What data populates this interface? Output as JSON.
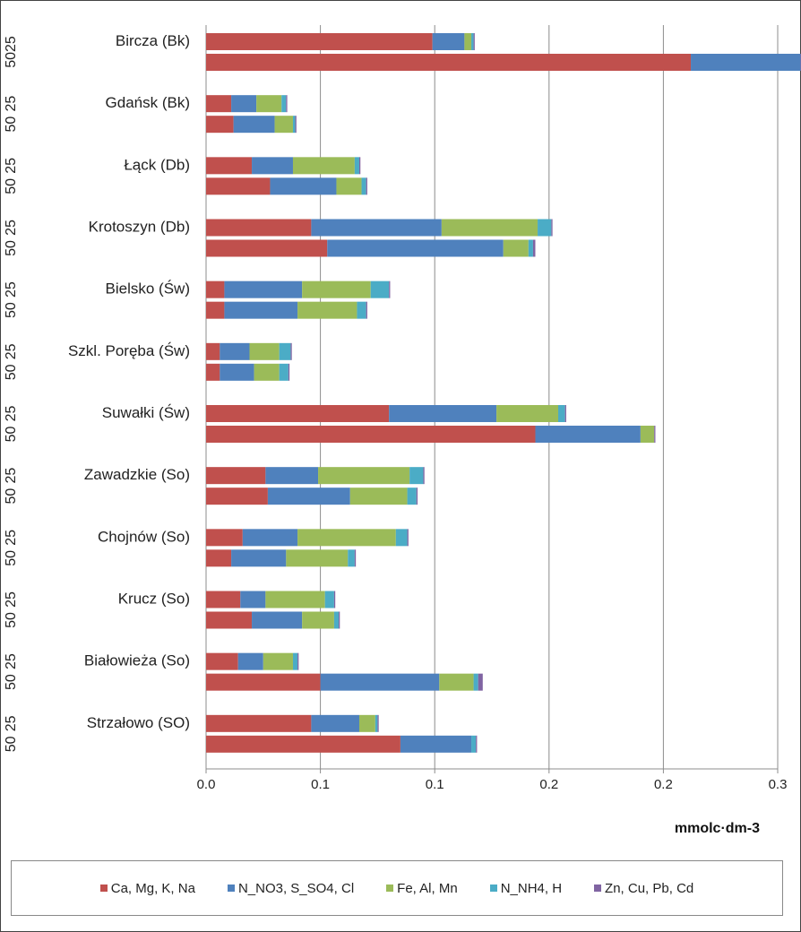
{
  "chart_data": {
    "type": "bar",
    "orientation": "horizontal",
    "stacked": true,
    "categories": [
      "Bircza (Bk)",
      "Gdańsk (Bk)",
      "Łąck (Db)",
      "Krotoszyn (Db)",
      "Bielsko (Św)",
      "Szkl. Poręba (Św)",
      "Suwałki (Św)",
      "Zawadzkie (So)",
      "Chojnów (So)",
      "Krucz (So)",
      "Białowieża (So)",
      "Strzałowo (SO)"
    ],
    "depth_labels": [
      "50",
      "25",
      "50",
      "25",
      "50",
      "25",
      "50",
      "25",
      "50",
      "25",
      "50",
      "25",
      "50",
      "25",
      "50",
      "25",
      "50",
      "25",
      "50",
      "25",
      "50",
      "25",
      "50",
      "25"
    ],
    "depth_label_first": "5025",
    "series": [
      {
        "name": "Ca, Mg, K, Na",
        "color": "#c0504d",
        "values": [
          [
            0.099,
            0.212
          ],
          [
            0.011,
            0.012
          ],
          [
            0.02,
            0.028
          ],
          [
            0.046,
            0.053
          ],
          [
            0.008,
            0.008
          ],
          [
            0.006,
            0.006
          ],
          [
            0.08,
            0.144
          ],
          [
            0.026,
            0.027
          ],
          [
            0.016,
            0.011
          ],
          [
            0.015,
            0.02
          ],
          [
            0.014,
            0.05
          ],
          [
            0.046,
            0.085
          ]
        ]
      },
      {
        "name": "N_NO3, S_SO4, Cl",
        "color": "#4f81bd",
        "values": [
          [
            0.014,
            0.048
          ],
          [
            0.011,
            0.018
          ],
          [
            0.018,
            0.029
          ],
          [
            0.057,
            0.077
          ],
          [
            0.034,
            0.032
          ],
          [
            0.013,
            0.015
          ],
          [
            0.047,
            0.046
          ],
          [
            0.023,
            0.036
          ],
          [
            0.024,
            0.024
          ],
          [
            0.011,
            0.022
          ],
          [
            0.011,
            0.052
          ],
          [
            0.021,
            0.031
          ]
        ]
      },
      {
        "name": "Fe, Al, Mn",
        "color": "#9bbb59",
        "values": [
          [
            0.003,
            0.0
          ],
          [
            0.011,
            0.008
          ],
          [
            0.027,
            0.011
          ],
          [
            0.042,
            0.011
          ],
          [
            0.03,
            0.026
          ],
          [
            0.013,
            0.011
          ],
          [
            0.027,
            0.006
          ],
          [
            0.04,
            0.025
          ],
          [
            0.043,
            0.027
          ],
          [
            0.026,
            0.014
          ],
          [
            0.013,
            0.015
          ],
          [
            0.007,
            0.0
          ]
        ]
      },
      {
        "name": "N_NH4, H",
        "color": "#4bacc6",
        "values": [
          [
            0.001,
            0.0
          ],
          [
            0.002,
            0.001
          ],
          [
            0.002,
            0.002
          ],
          [
            0.006,
            0.002
          ],
          [
            0.008,
            0.004
          ],
          [
            0.005,
            0.004
          ],
          [
            0.003,
            0.0
          ],
          [
            0.006,
            0.004
          ],
          [
            0.005,
            0.003
          ],
          [
            0.004,
            0.002
          ],
          [
            0.002,
            0.002
          ],
          [
            0.001,
            0.002
          ]
        ]
      },
      {
        "name": "Zn, Cu, Pb, Cd",
        "color": "#8064a2",
        "values": [
          [
            0.0005,
            0.001
          ],
          [
            0.0005,
            0.0005
          ],
          [
            0.0005,
            0.0005
          ],
          [
            0.0005,
            0.001
          ],
          [
            0.0005,
            0.0005
          ],
          [
            0.0005,
            0.0005
          ],
          [
            0.0005,
            0.0005
          ],
          [
            0.0005,
            0.0005
          ],
          [
            0.0005,
            0.0005
          ],
          [
            0.0005,
            0.0005
          ],
          [
            0.0005,
            0.002
          ],
          [
            0.0005,
            0.0005
          ]
        ]
      }
    ],
    "x_ticks": [
      "0.0",
      "0.1",
      "0.1",
      "0.2",
      "0.2",
      "0.3"
    ],
    "xlim": [
      0,
      0.25
    ],
    "xlabel": "mmolc·dm-3",
    "grid": "vertical",
    "legend_position": "bottom"
  }
}
